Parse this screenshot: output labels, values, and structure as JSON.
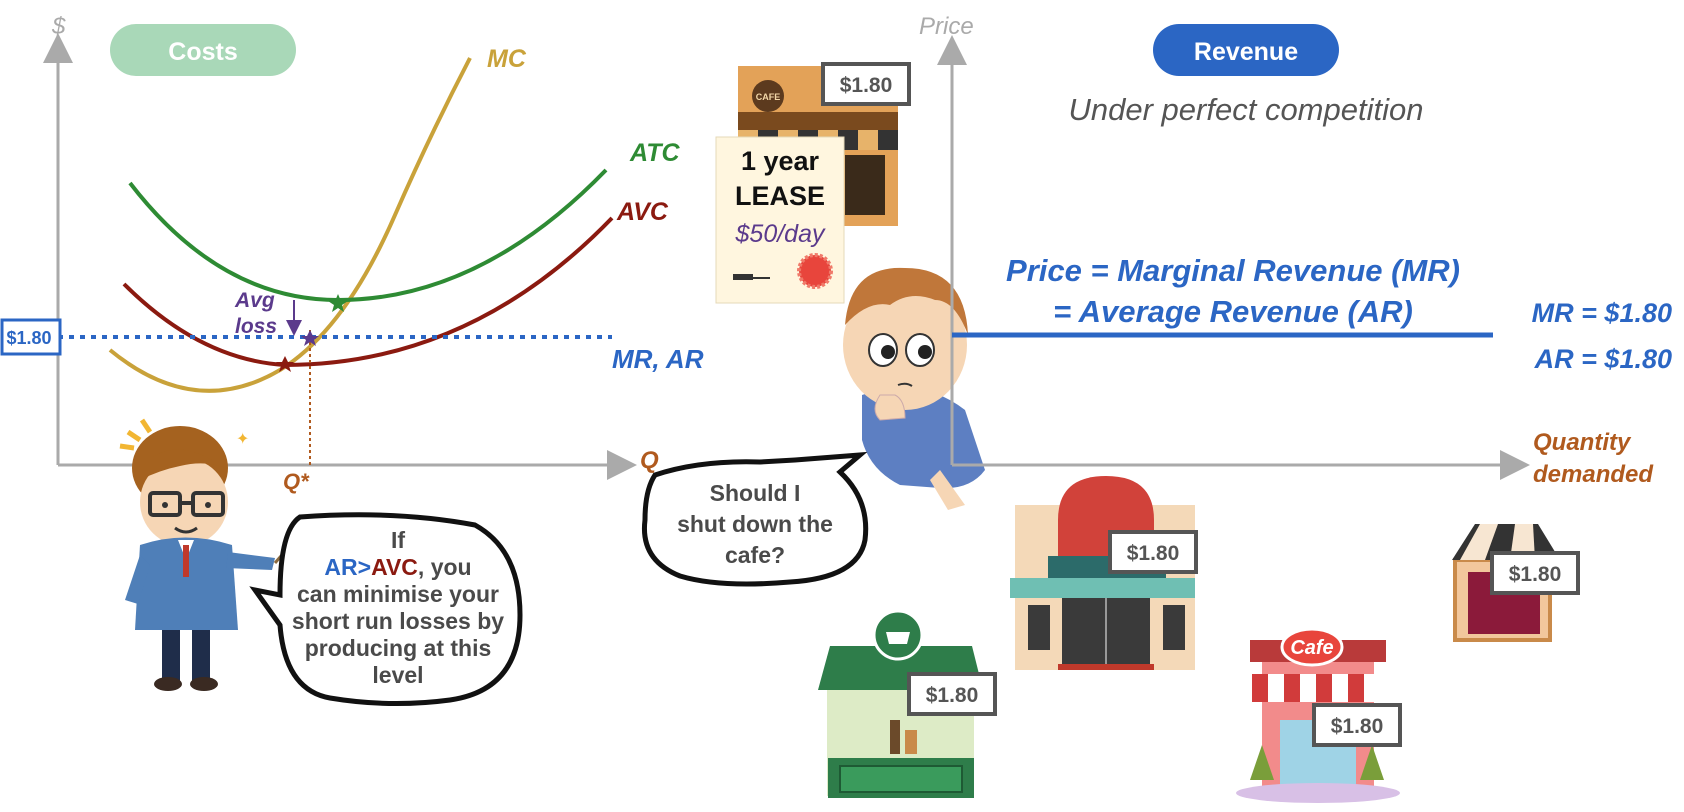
{
  "colors": {
    "mc": "#C9A23A",
    "atc": "#2E8B34",
    "avc": "#8B1A10",
    "mr_blue": "#2B66C4",
    "axis": "#AAAAAA",
    "qstar": "#B05A1E",
    "avg_loss": "#5B3A8C",
    "costs_pill": "#A9D8B8",
    "revenue_pill": "#2B66C4"
  },
  "left_chart": {
    "y_axis_label": "$",
    "x_axis_label": "Q",
    "title_pill": "Costs",
    "mc_label": "MC",
    "atc_label": "ATC",
    "avc_label": "AVC",
    "mr_ar_label": "MR, AR",
    "price_box": "$1.80",
    "avg_loss_line1": "Avg",
    "avg_loss_line2": "loss",
    "qstar_label": "Q*"
  },
  "right_chart": {
    "y_axis_label": "Price",
    "title_pill": "Revenue",
    "subtitle": "Under perfect competition",
    "equation_line1": "Price = Marginal Revenue (MR)",
    "equation_line2": "= Average Revenue (AR)",
    "mr_value": "MR = $1.80",
    "ar_value": "AR = $1.80",
    "x_axis_label_line1": "Quantity",
    "x_axis_label_line2": "demanded"
  },
  "lease_card": {
    "line1": "1 year",
    "line2": "LEASE",
    "line3": "$50/day"
  },
  "teacher_bubble": {
    "line1": "If",
    "line2_ar": "AR",
    "line2_gt": ">",
    "line2_avc": "AVC",
    "line2_rest": ", you",
    "line3": "can minimise your",
    "line4": "short run losses by",
    "line5": "producing at this",
    "line6": "level"
  },
  "thinker_bubble": {
    "line1": "Should I",
    "line2": "shut down the",
    "line3": "cafe?"
  },
  "shops": {
    "main_price": "$1.80",
    "green_price": "$1.80",
    "red_dome_price": "$1.80",
    "cafe_sign": "Cafe",
    "cafe_price": "$1.80",
    "awning_price": "$1.80",
    "main_sign": "CAFE"
  }
}
